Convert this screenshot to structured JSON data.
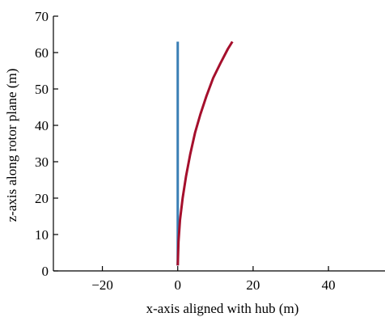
{
  "chart_data": {
    "type": "line",
    "title": "",
    "xlabel": "x-axis aligned with hub (m)",
    "ylabel": "z-axis along rotor plane (m)",
    "xlim": [
      -33,
      55
    ],
    "ylim": [
      0,
      70
    ],
    "xticks": [
      -20,
      0,
      20,
      40
    ],
    "xtick_labels": [
      "−20",
      "0",
      "20",
      "40"
    ],
    "yticks": [
      0,
      10,
      20,
      30,
      40,
      50,
      60,
      70
    ],
    "ytick_labels": [
      "0",
      "10",
      "20",
      "30",
      "40",
      "50",
      "60",
      "70"
    ],
    "grid": false,
    "legend": "none",
    "series": [
      {
        "color": "#3a7fb5",
        "x": [
          0,
          0
        ],
        "y": [
          1.5,
          63
        ]
      },
      {
        "color": "#a50f2c",
        "x": [
          0,
          0.2,
          0.6,
          1.3,
          2.2,
          3.3,
          4.6,
          6.0,
          7.6,
          9.4,
          11.3,
          13.3,
          14.5
        ],
        "y": [
          1.5,
          8,
          14,
          20,
          26,
          32,
          38,
          43,
          48,
          53,
          57,
          61,
          63
        ]
      }
    ]
  }
}
